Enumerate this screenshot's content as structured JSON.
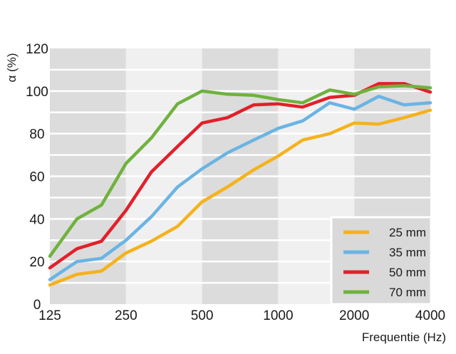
{
  "chart_data": {
    "type": "line",
    "xlabel": "Frequentie (Hz)",
    "ylabel": "α  (%)",
    "x_scale": "log",
    "ylim": [
      0,
      120
    ],
    "x_ticks": [
      "125",
      "250",
      "500",
      "1000",
      "2000",
      "4000"
    ],
    "y_ticks": [
      "0",
      "20",
      "40",
      "60",
      "80",
      "100",
      "120"
    ],
    "x": [
      125,
      160,
      200,
      250,
      315,
      400,
      500,
      630,
      800,
      1000,
      1250,
      1600,
      2000,
      2500,
      3150,
      4000
    ],
    "series": [
      {
        "name": "25 mm",
        "color": "#f5b21b",
        "values": [
          9,
          14,
          15.5,
          24,
          29.5,
          36.5,
          48,
          55,
          63,
          69.5,
          77,
          80,
          85,
          84.5,
          87.5,
          91
        ]
      },
      {
        "name": "35 mm",
        "color": "#6ab4e3",
        "values": [
          11.5,
          20,
          21.5,
          30,
          41,
          55,
          63.5,
          71,
          77,
          82.5,
          86,
          94.5,
          91.5,
          97.5,
          93.5,
          94.5
        ]
      },
      {
        "name": "50 mm",
        "color": "#e2202a",
        "values": [
          17,
          26,
          29.5,
          44,
          62,
          74,
          85,
          87.5,
          93.5,
          94,
          92.5,
          97,
          98,
          103.5,
          103.5,
          99.5
        ]
      },
      {
        "name": "70 mm",
        "color": "#6fb23d",
        "values": [
          22.5,
          40,
          46.5,
          66,
          78,
          94,
          100,
          98.5,
          98,
          96,
          94.5,
          100.5,
          98.5,
          102,
          102.5,
          101.5
        ]
      }
    ],
    "grid": true,
    "legend_position": "bottom-right",
    "background_bands": [
      "#dcdcdc",
      "#f0f0f0",
      "#dcdcdc",
      "#f0f0f0",
      "#dcdcdc"
    ],
    "gridline_color": "#ffffff"
  }
}
